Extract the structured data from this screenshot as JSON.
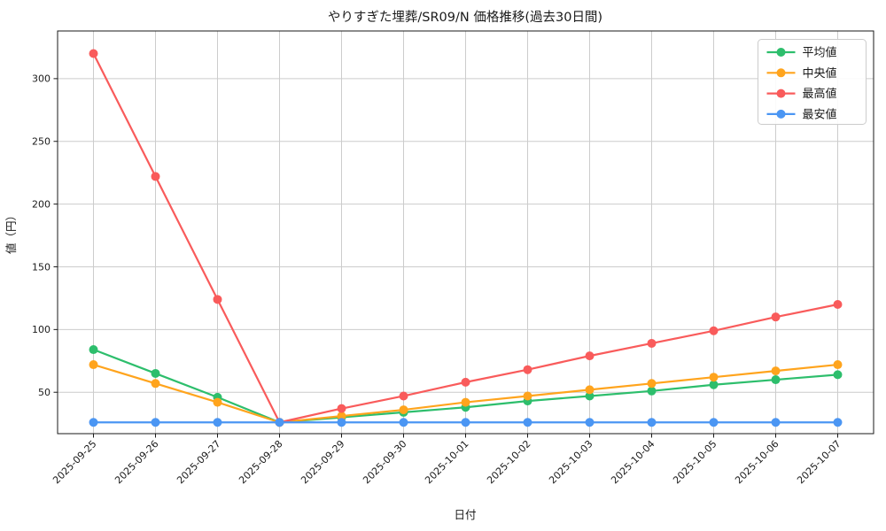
{
  "chart_data": {
    "type": "line",
    "title": "やりすぎた埋葬/SR09/N 価格推移(過去30日間)",
    "xlabel": "日付",
    "ylabel": "値（円）",
    "x": [
      "2025-09-25",
      "2025-09-26",
      "2025-09-27",
      "2025-09-28",
      "2025-09-29",
      "2025-09-30",
      "2025-10-01",
      "2025-10-02",
      "2025-10-03",
      "2025-10-04",
      "2025-10-05",
      "2025-10-06",
      "2025-10-07"
    ],
    "series": [
      {
        "name": "平均値",
        "color": "#2dbe6c",
        "values": [
          84,
          65,
          46,
          26,
          30,
          34,
          38,
          43,
          47,
          51,
          56,
          60,
          64
        ]
      },
      {
        "name": "中央値",
        "color": "#ffa41d",
        "values": [
          72,
          57,
          42,
          26,
          31,
          36,
          42,
          47,
          52,
          57,
          62,
          67,
          72
        ]
      },
      {
        "name": "最高値",
        "color": "#f95b5b",
        "values": [
          320,
          222,
          124,
          26,
          37,
          47,
          58,
          68,
          79,
          89,
          99,
          110,
          120
        ]
      },
      {
        "name": "最安値",
        "color": "#4b96f3",
        "values": [
          26,
          26,
          26,
          26,
          26,
          26,
          26,
          26,
          26,
          26,
          26,
          26,
          26
        ]
      }
    ],
    "ylim": [
      17,
      338
    ],
    "yticks": [
      50,
      100,
      150,
      200,
      250,
      300
    ],
    "grid": true,
    "legend_position": "upper right",
    "styles": {
      "grid_color": "#cccccc",
      "axis_color": "#1a1a1a",
      "legend_border": "#cccccc",
      "legend_bg": "#ffffff"
    }
  }
}
